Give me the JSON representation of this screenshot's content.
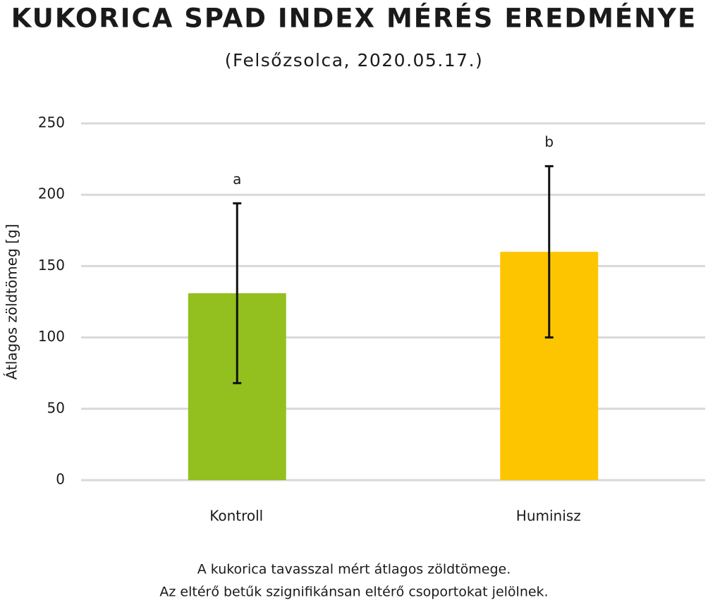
{
  "chart_data": {
    "type": "bar",
    "title": "KUKORICA SPAD INDEX MÉRÉS EREDMÉNYE",
    "subtitle": "(Felsőzsolca, 2020.05.17.)",
    "y_label": "Átlagos zöldtömeg [g]",
    "categories": [
      "Kontroll",
      "Huminisz"
    ],
    "values": [
      131,
      160
    ],
    "errors": [
      63,
      60
    ],
    "colors": [
      "#93c01f",
      "#fdc500"
    ],
    "significance_letters": [
      "a",
      "b"
    ],
    "ylim": [
      0,
      250
    ],
    "yticks": [
      0,
      50,
      100,
      150,
      200,
      250
    ],
    "grid": true,
    "note": [
      "A kukorica tavasszal mért átlagos zöldtömege.",
      "Az eltérő betűk szignifikánsan eltérő csoportokat jelölnek."
    ]
  }
}
